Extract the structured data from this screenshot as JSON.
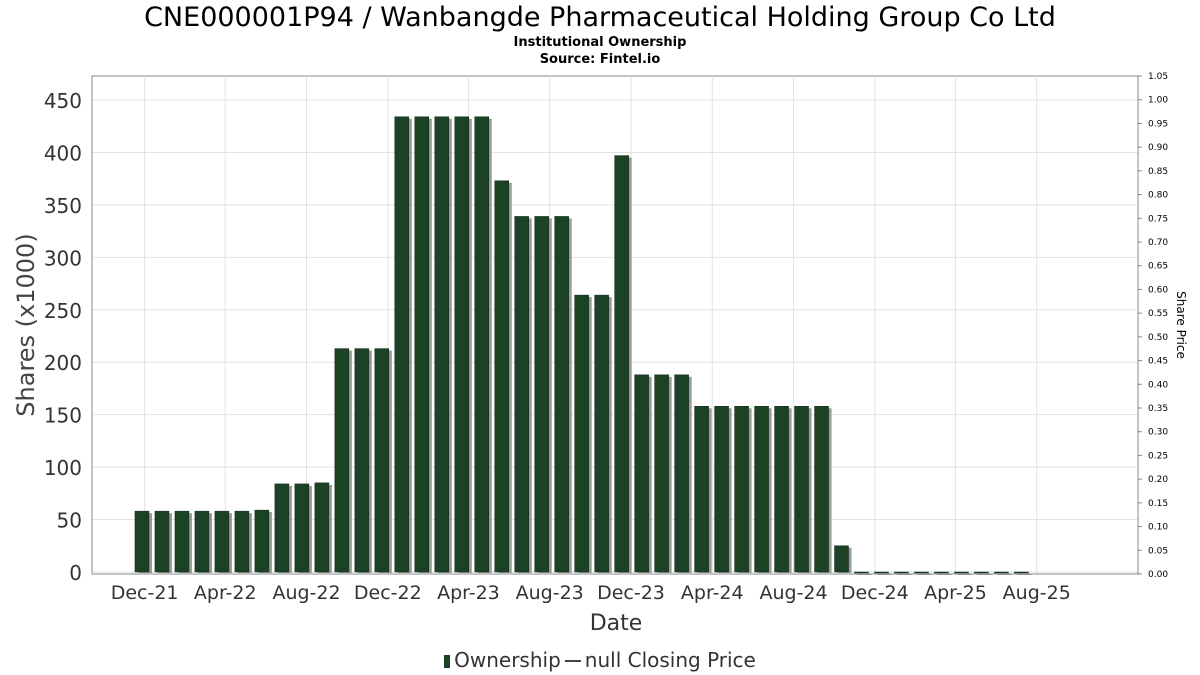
{
  "header": {
    "title": "CNE000001P94 / Wanbangde Pharmaceutical Holding Group Co Ltd",
    "subtitle": "Institutional Ownership",
    "source": "Source: Fintel.io"
  },
  "legend": {
    "ownership_label": "Ownership",
    "price_label": "null Closing Price"
  },
  "colors": {
    "bar": "#1b4225",
    "bar_shadow": "#9a9a9a",
    "grid": "#e2e2e2",
    "axis": "#888888"
  },
  "chart_data": {
    "type": "bar",
    "title": "CNE000001P94 / Wanbangde Pharmaceutical Holding Group Co Ltd",
    "xlabel": "Date",
    "ylabel": "Shares (x1000)",
    "y2label": "Share Price",
    "ylim": [
      0,
      450
    ],
    "y2lim": [
      0,
      1.05
    ],
    "yticks": [
      0,
      50,
      100,
      150,
      200,
      250,
      300,
      350,
      400,
      450
    ],
    "y2ticks": [
      "0.00",
      "0.05",
      "0.10",
      "0.15",
      "0.20",
      "0.25",
      "0.30",
      "0.35",
      "0.40",
      "0.45",
      "0.50",
      "0.55",
      "0.60",
      "0.65",
      "0.70",
      "0.75",
      "0.80",
      "0.85",
      "0.90",
      "0.95",
      "1.00",
      "1.05"
    ],
    "xlim": [
      "2021-09-13",
      "2025-12-31"
    ],
    "xticks": [
      {
        "label": "Dec-21",
        "date": "2021-12-01"
      },
      {
        "label": "Apr-22",
        "date": "2022-04-01"
      },
      {
        "label": "Aug-22",
        "date": "2022-08-01"
      },
      {
        "label": "Dec-22",
        "date": "2022-12-01"
      },
      {
        "label": "Apr-23",
        "date": "2023-04-01"
      },
      {
        "label": "Aug-23",
        "date": "2023-08-01"
      },
      {
        "label": "Dec-23",
        "date": "2023-12-01"
      },
      {
        "label": "Apr-24",
        "date": "2024-04-01"
      },
      {
        "label": "Aug-24",
        "date": "2024-08-01"
      },
      {
        "label": "Dec-24",
        "date": "2024-12-01"
      },
      {
        "label": "Apr-25",
        "date": "2025-04-01"
      },
      {
        "label": "Aug-25",
        "date": "2025-08-01"
      }
    ],
    "grid": true,
    "legend_position": "bottom",
    "series": [
      {
        "name": "Ownership",
        "points": [
          {
            "x": "2021-11-27",
            "y": 58
          },
          {
            "x": "2021-12-27",
            "y": 58
          },
          {
            "x": "2022-01-26",
            "y": 58
          },
          {
            "x": "2022-02-25",
            "y": 58
          },
          {
            "x": "2022-03-27",
            "y": 58
          },
          {
            "x": "2022-04-26",
            "y": 58
          },
          {
            "x": "2022-05-26",
            "y": 59
          },
          {
            "x": "2022-06-25",
            "y": 84
          },
          {
            "x": "2022-07-25",
            "y": 84
          },
          {
            "x": "2022-08-24",
            "y": 85
          },
          {
            "x": "2022-09-23",
            "y": 213
          },
          {
            "x": "2022-10-23",
            "y": 213
          },
          {
            "x": "2022-11-22",
            "y": 213
          },
          {
            "x": "2022-12-22",
            "y": 434
          },
          {
            "x": "2023-01-21",
            "y": 434
          },
          {
            "x": "2023-02-20",
            "y": 434
          },
          {
            "x": "2023-03-22",
            "y": 434
          },
          {
            "x": "2023-04-21",
            "y": 434
          },
          {
            "x": "2023-05-21",
            "y": 373
          },
          {
            "x": "2023-06-20",
            "y": 339
          },
          {
            "x": "2023-07-20",
            "y": 339
          },
          {
            "x": "2023-08-19",
            "y": 339
          },
          {
            "x": "2023-09-18",
            "y": 264
          },
          {
            "x": "2023-10-18",
            "y": 264
          },
          {
            "x": "2023-11-17",
            "y": 397
          },
          {
            "x": "2023-12-17",
            "y": 188
          },
          {
            "x": "2024-01-16",
            "y": 188
          },
          {
            "x": "2024-02-15",
            "y": 188
          },
          {
            "x": "2024-03-16",
            "y": 158
          },
          {
            "x": "2024-04-15",
            "y": 158
          },
          {
            "x": "2024-05-15",
            "y": 158
          },
          {
            "x": "2024-06-14",
            "y": 158
          },
          {
            "x": "2024-07-14",
            "y": 158
          },
          {
            "x": "2024-08-13",
            "y": 158
          },
          {
            "x": "2024-09-12",
            "y": 158
          },
          {
            "x": "2024-10-12",
            "y": 25
          },
          {
            "x": "2024-11-11",
            "y": 0
          },
          {
            "x": "2024-12-11",
            "y": 0
          },
          {
            "x": "2025-01-10",
            "y": 0
          },
          {
            "x": "2025-02-09",
            "y": 0
          },
          {
            "x": "2025-03-11",
            "y": 0
          },
          {
            "x": "2025-04-10",
            "y": 0
          },
          {
            "x": "2025-05-10",
            "y": 0
          },
          {
            "x": "2025-06-09",
            "y": 0
          },
          {
            "x": "2025-07-09",
            "y": 0
          }
        ]
      }
    ]
  }
}
